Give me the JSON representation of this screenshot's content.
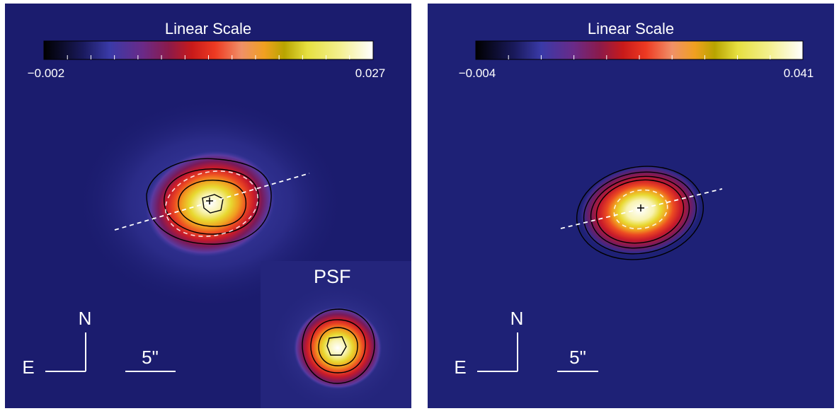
{
  "panels": [
    {
      "colorbar": {
        "title": "Linear Scale",
        "min_label": "−0.002",
        "max_label": "0.027"
      },
      "compass": {
        "north": "N",
        "east": "E"
      },
      "scalebar": {
        "label": "5\""
      },
      "inset": {
        "label": "PSF"
      }
    },
    {
      "colorbar": {
        "title": "Linear Scale",
        "min_label": "−0.004",
        "max_label": "0.041"
      },
      "compass": {
        "north": "N",
        "east": "E"
      },
      "scalebar": {
        "label": "5\""
      }
    }
  ],
  "colors": {
    "background": "#1b1c6e",
    "colormap": [
      "#000000",
      "#1a1a5e",
      "#3a3aa8",
      "#6a2a88",
      "#8c1a4a",
      "#c81a1a",
      "#ee3a22",
      "#f09068",
      "#f0a020",
      "#b8a400",
      "#e6e040",
      "#f4f090",
      "#ffffff"
    ],
    "contour": "#000000",
    "axis_line": "#ffffff"
  }
}
